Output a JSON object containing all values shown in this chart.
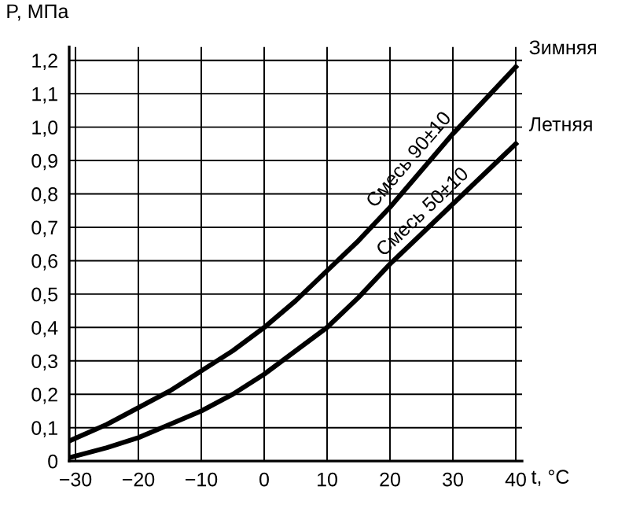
{
  "chart_data": {
    "type": "line",
    "xlabel": "t, °C",
    "ylabel": "P, МПа",
    "x": [
      -31,
      -25,
      -20,
      -15,
      -10,
      -5,
      0,
      5,
      10,
      15,
      20,
      25,
      30,
      35,
      40
    ],
    "series": [
      {
        "name": "Зимняя",
        "color": "#000000",
        "values": [
          0.06,
          0.11,
          0.16,
          0.21,
          0.27,
          0.33,
          0.4,
          0.48,
          0.57,
          0.66,
          0.76,
          0.87,
          0.98,
          1.08,
          1.18
        ]
      },
      {
        "name": "Летняя",
        "color": "#000000",
        "values": [
          0.01,
          0.04,
          0.07,
          0.11,
          0.15,
          0.2,
          0.26,
          0.33,
          0.4,
          0.49,
          0.59,
          0.68,
          0.77,
          0.86,
          0.95
        ]
      }
    ],
    "annotations": [
      {
        "text": "Смесь 90±10",
        "x": 25,
        "y": 0.87
      },
      {
        "text": "Смесь 50±10",
        "x": 27,
        "y": 0.71
      }
    ],
    "xlim": [
      -31,
      41
    ],
    "ylim": [
      0,
      1.24
    ],
    "xticks": [
      {
        "value": -30,
        "label": "−30"
      },
      {
        "value": -20,
        "label": "−20"
      },
      {
        "value": -10,
        "label": "−10"
      },
      0,
      10,
      20,
      30,
      40
    ],
    "yticks": [
      0,
      {
        "value": 0.1,
        "label": "0,1"
      },
      {
        "value": 0.2,
        "label": "0,2"
      },
      {
        "value": 0.3,
        "label": "0,3"
      },
      {
        "value": 0.4,
        "label": "0,4"
      },
      {
        "value": 0.5,
        "label": "0,5"
      },
      {
        "value": 0.6,
        "label": "0,6"
      },
      {
        "value": 0.7,
        "label": "0,7"
      },
      {
        "value": 0.8,
        "label": "0,8"
      },
      {
        "value": 0.9,
        "label": "0,9"
      },
      {
        "value": 1.0,
        "label": "1,0"
      },
      {
        "value": 1.1,
        "label": "1,1"
      },
      {
        "value": 1.2,
        "label": "1,2"
      }
    ],
    "grid": true,
    "legend": false,
    "marker": "none",
    "line_style": "solid"
  }
}
